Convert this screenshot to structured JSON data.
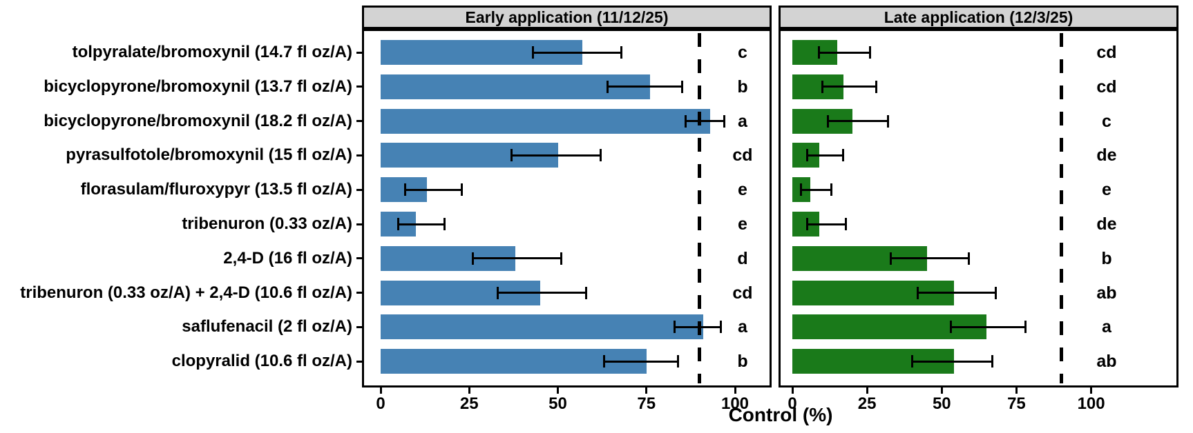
{
  "chart_data": {
    "type": "bar",
    "orientation": "horizontal",
    "xlabel": "Control (%)",
    "x_ticks": [
      0,
      25,
      50,
      75,
      100
    ],
    "xlim": [
      0,
      110
    ],
    "grid": false,
    "error_bars": "shown",
    "reference_line": {
      "value": 90,
      "style": "dashed",
      "color": "#000000"
    },
    "categories": [
      "tolpyralate/bromoxynil (14.7 fl oz/A)",
      "bicyclopyrone/bromoxynil (13.7 fl oz/A)",
      "bicyclopyrone/bromoxynil (18.2 fl oz/A)",
      "pyrasulfotole/bromoxynil (15 fl oz/A)",
      "florasulam/fluroxypyr (13.5 fl oz/A)",
      "tribenuron (0.33 oz/A)",
      "2,4-D (16 fl oz/A)",
      "tribenuron (0.33 oz/A) + 2,4-D (10.6 fl oz/A)",
      "saflufenacil (2 fl oz/A)",
      "clopyralid (10.6 fl oz/A)"
    ],
    "series": [
      {
        "name": "Early application (11/12/25)",
        "color": "#4682b4",
        "values": [
          57,
          76,
          93,
          50,
          13,
          10,
          38,
          45,
          91,
          75
        ],
        "error_low": [
          43,
          64,
          86,
          37,
          7,
          5,
          26,
          33,
          83,
          63
        ],
        "error_high": [
          68,
          85,
          97,
          62,
          23,
          18,
          51,
          58,
          96,
          84
        ],
        "sig_letters": [
          "c",
          "b",
          "a",
          "cd",
          "e",
          "e",
          "d",
          "cd",
          "a",
          "b"
        ]
      },
      {
        "name": "Late application (12/3/25)",
        "color": "#1a7a1a",
        "values": [
          15,
          17,
          20,
          9,
          6,
          9,
          45,
          54,
          65,
          54
        ],
        "error_low": [
          9,
          10,
          12,
          5,
          3,
          5,
          33,
          42,
          53,
          40
        ],
        "error_high": [
          26,
          28,
          32,
          17,
          13,
          18,
          59,
          68,
          78,
          67
        ],
        "sig_letters": [
          "cd",
          "cd",
          "c",
          "de",
          "e",
          "de",
          "b",
          "ab",
          "a",
          "ab"
        ]
      }
    ],
    "style": {
      "panel_header_bg": "#d3d3d3",
      "border_color": "#000000",
      "text_color": "#000000"
    }
  }
}
